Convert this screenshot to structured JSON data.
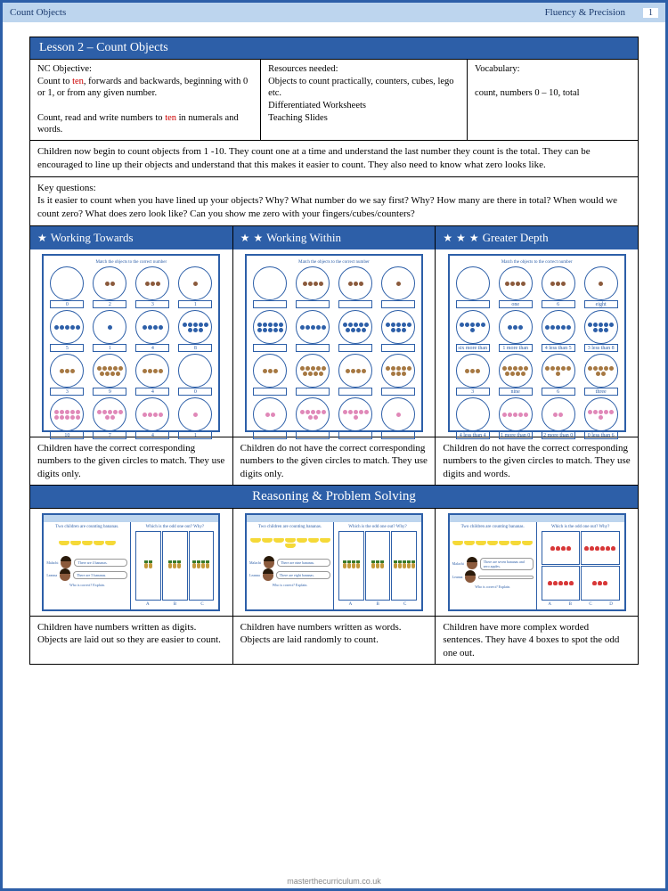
{
  "header": {
    "left": "Count Objects",
    "right": "Fluency & Precision",
    "page": "1"
  },
  "lesson_title": "Lesson 2 – Count Objects",
  "info": {
    "objective_label": "NC Objective:",
    "objective1a": "Count to ",
    "objective1b": ", forwards and backwards, beginning with 0 or 1, or from any given number.",
    "objective2a": "Count, read and write numbers to ",
    "objective2b": " in numerals and words.",
    "ten": "ten",
    "resources_label": "Resources needed:",
    "resources": "Objects to count practically, counters, cubes, lego etc.\nDifferentiated Worksheets\nTeaching Slides",
    "vocab_label": "Vocabulary:",
    "vocab": "count, numbers 0 – 10, total"
  },
  "description": "Children now begin to count objects from 1 -10. They count one at a time and understand the last number they count is the total. They can be encouraged to line up their objects and understand that this makes it easier to count. They also need to know what zero looks like.",
  "key_q_label": "Key questions:",
  "key_questions": "Is it easier to count when you have lined up your objects? Why? What number do we say first? Why? How many are there in total? When would we count zero? What does zero look like? Can you show me zero with your fingers/cubes/counters?",
  "levels": {
    "wt": "Working Towards",
    "ww": "Working Within",
    "gd": "Greater Depth"
  },
  "worksheets": {
    "title": "Match the objects to the correct number",
    "wt": {
      "rows": [
        {
          "color": "#8b5a3c",
          "items": [
            0,
            2,
            3,
            1
          ],
          "labels": [
            "0",
            "2",
            "3",
            "1"
          ]
        },
        {
          "color": "#2d5fa8",
          "items": [
            5,
            1,
            4,
            8
          ],
          "labels": [
            "5",
            "1",
            "4",
            "8"
          ]
        },
        {
          "color": "#a67842",
          "items": [
            3,
            9,
            4,
            0
          ],
          "labels": [
            "3",
            "9",
            "4",
            "0"
          ]
        },
        {
          "color": "#e088b8",
          "items": [
            10,
            7,
            4,
            1
          ],
          "labels": [
            "10",
            "7",
            "4",
            "1"
          ]
        }
      ]
    },
    "ww": {
      "rows": [
        {
          "color": "#8b5a3c",
          "items": [
            0,
            4,
            3,
            1
          ],
          "labels": [
            "",
            "",
            "",
            ""
          ]
        },
        {
          "color": "#2d5fa8",
          "items": [
            10,
            5,
            9,
            8
          ],
          "labels": [
            "",
            "",
            "",
            ""
          ]
        },
        {
          "color": "#a67842",
          "items": [
            3,
            9,
            4,
            8
          ],
          "labels": [
            "",
            "",
            "",
            ""
          ]
        },
        {
          "color": "#e088b8",
          "items": [
            2,
            7,
            6,
            1
          ],
          "labels": [
            "",
            "",
            "",
            ""
          ]
        }
      ]
    },
    "gd": {
      "rows": [
        {
          "color": "#8b5a3c",
          "items": [
            0,
            4,
            3,
            1
          ],
          "labels": [
            "",
            "one",
            "6",
            "eight",
            "1"
          ]
        },
        {
          "color": "#2d5fa8",
          "items": [
            6,
            3,
            5,
            8
          ],
          "labels": [
            "six more than zero",
            "1 more than three",
            "4 less than 5",
            "3 less than 8"
          ]
        },
        {
          "color": "#a67842",
          "items": [
            3,
            9,
            6,
            7
          ],
          "labels": [
            "3",
            "nine",
            "6",
            "three",
            "seven",
            "1"
          ]
        },
        {
          "color": "#e088b8",
          "items": [
            0,
            5,
            2,
            6
          ],
          "labels": [
            "4 less than 4",
            "1 more than 0",
            "2 more than 0",
            "0 less than 6"
          ]
        }
      ]
    }
  },
  "captions": {
    "wt": "Children have the correct corresponding numbers to the given circles to match. They use digits only.",
    "ww": "Children do not have the correct corresponding numbers to the given circles to match. They use digits only.",
    "gd": "Children do not have the correct corresponding numbers to the given circles to match. They use digits and words."
  },
  "rps_title": "Reasoning & Problem Solving",
  "rps": {
    "left_title": "Two children are counting bananas.",
    "right_title": "Which is the odd one out? Why?",
    "wt": {
      "s1": "There are 4 bananas.",
      "s2": "There are 5 bananas.",
      "q": "Who is correct? Explain.",
      "cols": 3,
      "bananas": 5,
      "pines": [
        2,
        3,
        4
      ],
      "labels": [
        "A",
        "B",
        "C"
      ],
      "fruit": "pine"
    },
    "ww": {
      "s1": "There are nine bananas.",
      "s2": "There are eight bananas.",
      "q": "Who is correct? Explain.",
      "cols": 3,
      "bananas": 8,
      "pines": [
        4,
        3,
        5
      ],
      "labels": [
        "A",
        "B",
        "C"
      ],
      "fruit": "pine"
    },
    "gd": {
      "s1": "There are seven bananas and zero apples.",
      "s2": "",
      "q": "Who is correct? Explain.",
      "cols": 2,
      "bananas": 7,
      "pines": [
        4,
        6,
        5,
        3
      ],
      "labels": [
        "A",
        "B",
        "C",
        "D"
      ],
      "fruit": "straw"
    }
  },
  "rps_captions": {
    "wt": "Children have numbers written as digits. Objects are laid out so they are easier to count.",
    "ww": "Children have numbers written as words. Objects are laid randomly to count.",
    "gd": "Children have more complex worded sentences. They have 4 boxes to spot the odd one out."
  },
  "names": {
    "n1": "Malachi",
    "n2": "Leanna"
  },
  "footer": "masterthecurriculum.co.uk"
}
